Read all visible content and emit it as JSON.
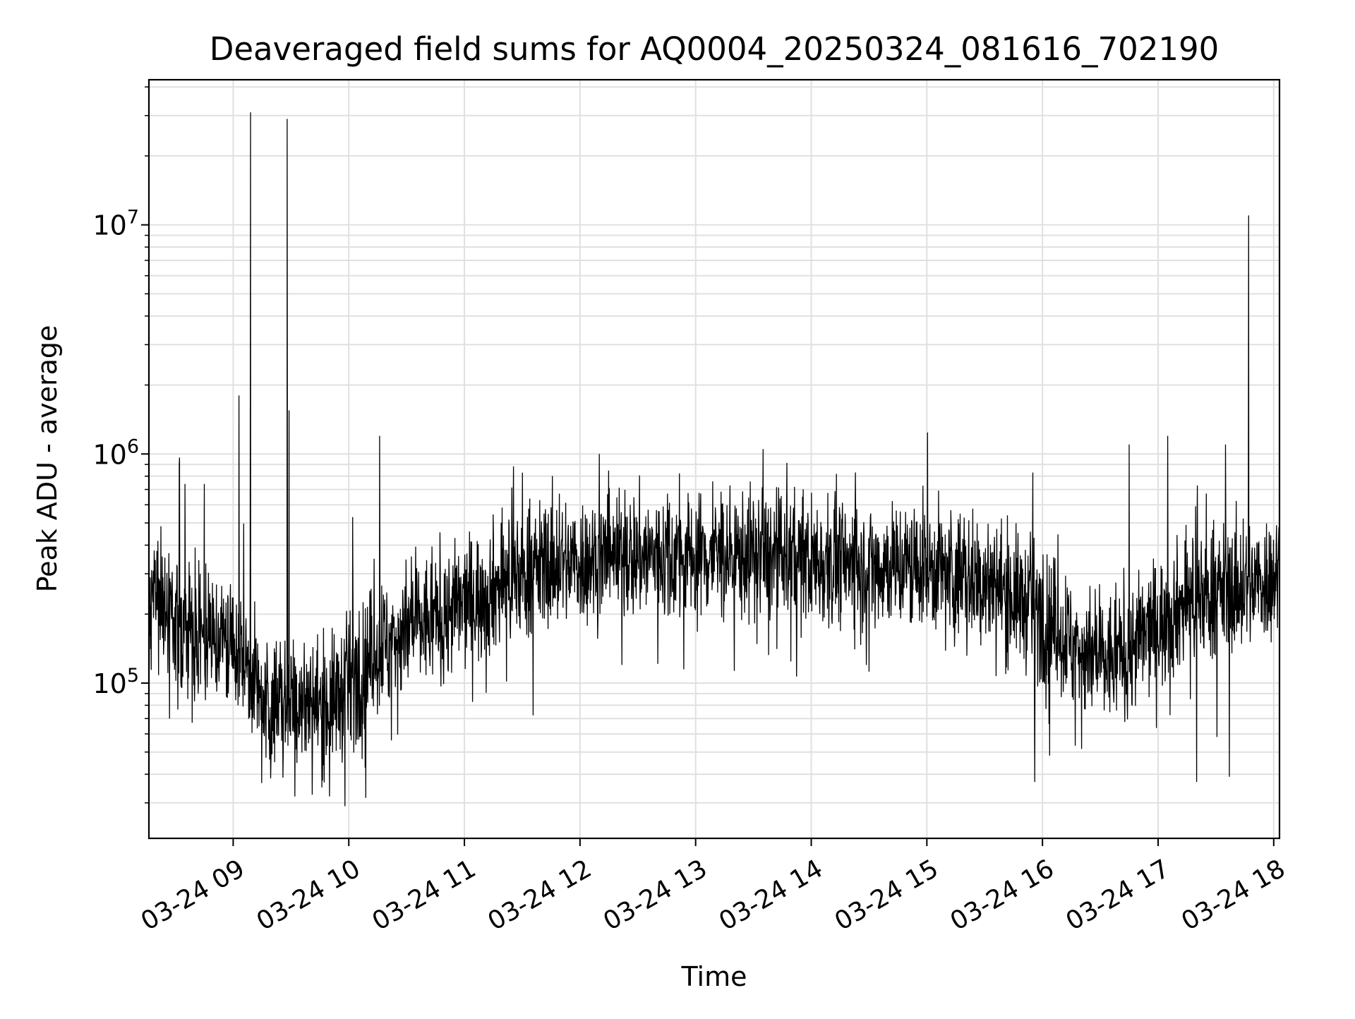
{
  "chart_data": {
    "type": "line",
    "title": "Deaveraged field sums for AQ0004_20250324_081616_702190",
    "xlabel": "Time",
    "ylabel": "Peak ADU - average",
    "yscale": "log",
    "ylim": [
      21000,
      43000000
    ],
    "xlim": [
      "2025-03-24T08:16:16",
      "2025-03-24T18:03:00"
    ],
    "grid": true,
    "legend": "none",
    "colors": {
      "line": "#000000",
      "grid": "#e0e0e0",
      "axes": "#000000"
    },
    "x_ticks": [
      {
        "t": "2025-03-24T09:00:00",
        "label": "03-24 09"
      },
      {
        "t": "2025-03-24T10:00:00",
        "label": "03-24 10"
      },
      {
        "t": "2025-03-24T11:00:00",
        "label": "03-24 11"
      },
      {
        "t": "2025-03-24T12:00:00",
        "label": "03-24 12"
      },
      {
        "t": "2025-03-24T13:00:00",
        "label": "03-24 13"
      },
      {
        "t": "2025-03-24T14:00:00",
        "label": "03-24 14"
      },
      {
        "t": "2025-03-24T15:00:00",
        "label": "03-24 15"
      },
      {
        "t": "2025-03-24T16:00:00",
        "label": "03-24 16"
      },
      {
        "t": "2025-03-24T17:00:00",
        "label": "03-24 17"
      },
      {
        "t": "2025-03-24T18:00:00",
        "label": "03-24 18"
      }
    ],
    "y_ticks": [
      {
        "value": 100000,
        "base": "10",
        "exp": "5"
      },
      {
        "value": 1000000,
        "base": "10",
        "exp": "6"
      },
      {
        "value": 10000000,
        "base": "10",
        "exp": "7"
      }
    ],
    "series": [
      {
        "x": [
          "2025-03-24T08:16:16",
          "2025-03-24T08:30:00",
          "2025-03-24T08:45:00",
          "2025-03-24T09:00:00",
          "2025-03-24T09:05:00",
          "2025-03-24T09:10:00",
          "2025-03-24T09:15:00",
          "2025-03-24T09:20:00",
          "2025-03-24T09:30:00",
          "2025-03-24T09:40:00",
          "2025-03-24T09:50:00",
          "2025-03-24T10:00:00",
          "2025-03-24T10:15:00",
          "2025-03-24T10:30:00",
          "2025-03-24T10:45:00",
          "2025-03-24T11:00:00",
          "2025-03-24T11:15:00",
          "2025-03-24T11:30:00",
          "2025-03-24T11:45:00",
          "2025-03-24T12:00:00",
          "2025-03-24T12:30:00",
          "2025-03-24T13:00:00",
          "2025-03-24T13:30:00",
          "2025-03-24T14:00:00",
          "2025-03-24T14:30:00",
          "2025-03-24T15:00:00",
          "2025-03-24T15:30:00",
          "2025-03-24T15:45:00",
          "2025-03-24T16:00:00",
          "2025-03-24T16:15:00",
          "2025-03-24T16:30:00",
          "2025-03-24T16:45:00",
          "2025-03-24T17:00:00",
          "2025-03-24T17:15:00",
          "2025-03-24T17:30:00",
          "2025-03-24T17:45:00",
          "2025-03-24T18:03:00"
        ],
        "y": [
          250000,
          180000,
          160000,
          150000,
          130000,
          110000,
          80000,
          80000,
          90000,
          80000,
          80000,
          100000,
          140000,
          170000,
          190000,
          220000,
          260000,
          300000,
          330000,
          340000,
          360000,
          360000,
          360000,
          340000,
          330000,
          320000,
          280000,
          240000,
          200000,
          150000,
          120000,
          140000,
          180000,
          230000,
          250000,
          260000,
          300000
        ]
      }
    ],
    "spikes": [
      {
        "t": "2025-03-24T08:32:00",
        "y": 900000
      },
      {
        "t": "2025-03-24T08:35:00",
        "y": 740000
      },
      {
        "t": "2025-03-24T08:45:00",
        "y": 740000
      },
      {
        "t": "2025-03-24T09:03:00",
        "y": 1800000
      },
      {
        "t": "2025-03-24T09:09:00",
        "y": 31000000
      },
      {
        "t": "2025-03-24T09:28:00",
        "y": 29000000
      },
      {
        "t": "2025-03-24T09:29:00",
        "y": 1550000
      },
      {
        "t": "2025-03-24T10:02:00",
        "y": 530000
      },
      {
        "t": "2025-03-24T10:16:00",
        "y": 1200000
      },
      {
        "t": "2025-03-24T12:10:00",
        "y": 1000000
      },
      {
        "t": "2025-03-24T13:35:00",
        "y": 1050000
      },
      {
        "t": "2025-03-24T15:55:00",
        "y": 830000
      },
      {
        "t": "2025-03-24T16:45:00",
        "y": 1100000
      },
      {
        "t": "2025-03-24T17:05:00",
        "y": 1200000
      },
      {
        "t": "2025-03-24T17:35:00",
        "y": 1100000
      },
      {
        "t": "2025-03-24T17:47:00",
        "y": 11000000
      },
      {
        "t": "2025-03-24T09:32:00",
        "y": 32000
      },
      {
        "t": "2025-03-24T09:50:00",
        "y": 32000
      },
      {
        "t": "2025-03-24T09:58:00",
        "y": 29000
      },
      {
        "t": "2025-03-24T15:56:00",
        "y": 37000
      },
      {
        "t": "2025-03-24T17:20:00",
        "y": 37000
      },
      {
        "t": "2025-03-24T17:37:00",
        "y": 39000
      }
    ]
  }
}
